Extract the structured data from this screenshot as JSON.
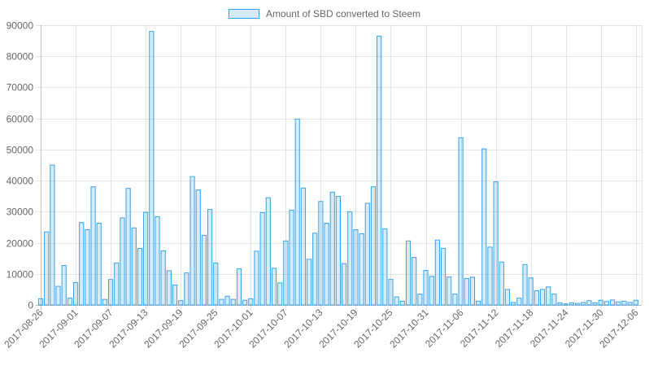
{
  "chart_data": {
    "type": "bar",
    "legend": {
      "position": "top",
      "label": "Amount of SBD converted to Steem"
    },
    "series": [
      {
        "name": "Amount of SBD converted to Steem",
        "color": "#36a2eb",
        "fill": "rgba(54,162,235,0.2)"
      }
    ],
    "ylim": [
      0,
      90000
    ],
    "yticks": [
      0,
      10000,
      20000,
      30000,
      40000,
      50000,
      60000,
      70000,
      80000,
      90000
    ],
    "grid": true,
    "start_date": "2017-08-26",
    "xtick_labels": [
      "2017-08-26",
      "2017-09-01",
      "2017-09-07",
      "2017-09-13",
      "2017-09-19",
      "2017-09-25",
      "2017-10-01",
      "2017-10-07",
      "2017-10-13",
      "2017-10-19",
      "2017-10-25",
      "2017-10-31",
      "2017-11-06",
      "2017-11-12",
      "2017-11-18",
      "2017-11-24",
      "2017-11-30",
      "2017-12-06"
    ],
    "values": [
      2000,
      23500,
      45000,
      6000,
      12700,
      2200,
      7200,
      26500,
      24200,
      38000,
      26300,
      1800,
      8200,
      13500,
      28000,
      37500,
      24800,
      18200,
      29800,
      88000,
      28400,
      17400,
      11000,
      6400,
      1400,
      10300,
      41300,
      37000,
      22400,
      30700,
      13500,
      1800,
      2800,
      1800,
      11600,
      1500,
      2000,
      17300,
      29700,
      34500,
      11800,
      7100,
      20600,
      30500,
      59800,
      37600,
      14700,
      23100,
      33300,
      26300,
      36300,
      34900,
      13300,
      30000,
      24200,
      22900,
      32700,
      38000,
      86500,
      24500,
      8200,
      2600,
      1200,
      20600,
      15300,
      3500,
      11100,
      9200,
      20900,
      18200,
      9000,
      3500,
      53800,
      8500,
      8900,
      1200,
      50200,
      18600,
      39600,
      13800,
      5000,
      800,
      2200,
      13000,
      8700,
      4600,
      5000,
      5800,
      3500,
      700,
      300,
      700,
      500,
      800,
      1400,
      700,
      1500,
      1100,
      1600,
      1000,
      1200,
      800,
      1500
    ]
  }
}
